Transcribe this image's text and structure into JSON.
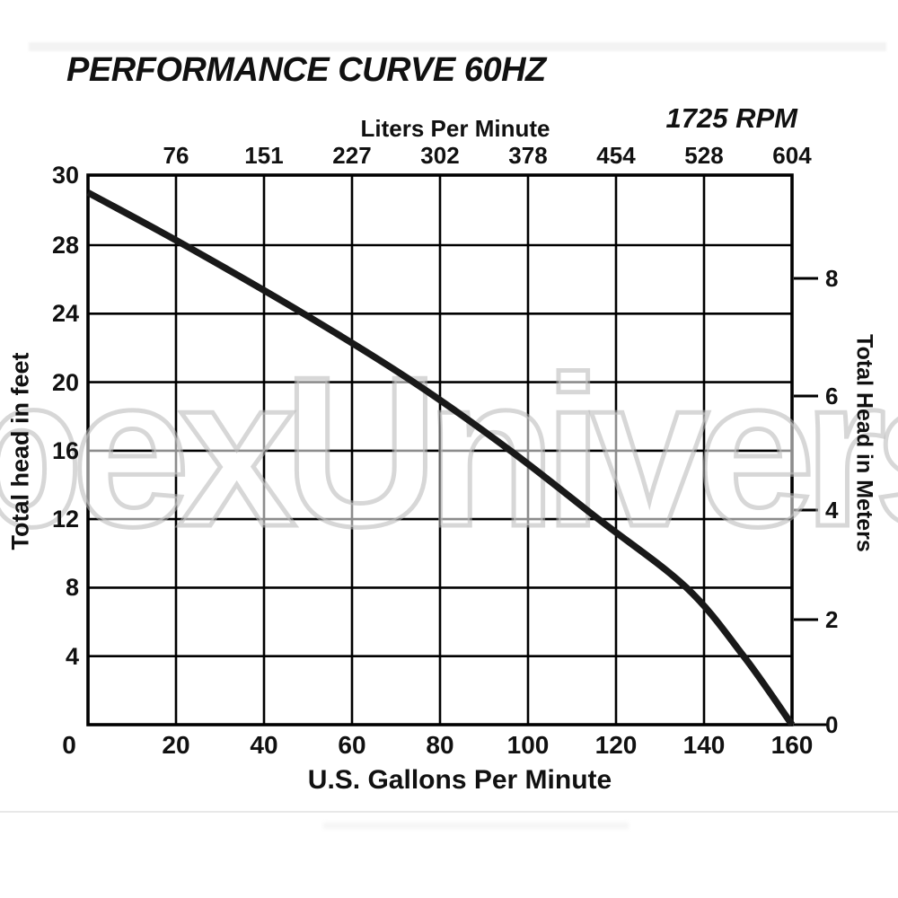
{
  "title": "PERFORMANCE CURVE 60HZ",
  "rpm_label": "1725 RPM",
  "watermark": "pexUniverse",
  "axes": {
    "top": {
      "label": "Liters Per Minute",
      "ticks": [
        76,
        151,
        227,
        302,
        378,
        454,
        528,
        604
      ]
    },
    "bottom": {
      "label": "U.S. Gallons Per Minute",
      "ticks": [
        0,
        20,
        40,
        60,
        80,
        100,
        120,
        140,
        160
      ]
    },
    "left": {
      "label": "Total head in feet",
      "ticks": [
        30,
        28,
        24,
        20,
        16,
        12,
        8,
        4
      ]
    },
    "right": {
      "label": "Total Head in Meters",
      "ticks": [
        8,
        6,
        4,
        2,
        0
      ]
    }
  },
  "colors": {
    "line": "#191919",
    "grid": "#000000",
    "text": "#111111",
    "watermark_stroke": "#b7b7b7"
  },
  "chart_data": {
    "type": "line",
    "title": "PERFORMANCE CURVE 60HZ",
    "series": [
      {
        "name": "1725 RPM",
        "x_gpm": [
          0,
          22,
          49,
          74,
          96,
          116,
          136,
          149,
          160
        ],
        "y_feet": [
          29.5,
          28,
          24,
          20,
          16,
          12,
          8,
          4,
          0
        ]
      }
    ],
    "xlabel": "U.S. Gallons Per Minute",
    "xlabel_top": "Liters Per Minute",
    "x_top_ticks_lpm": [
      76,
      151,
      227,
      302,
      378,
      454,
      528,
      604
    ],
    "ylabel": "Total head in feet",
    "ylabel_right": "Total Head in Meters",
    "y_right_ticks_m": [
      8,
      6,
      4,
      2,
      0
    ],
    "xlim": [
      0,
      160
    ],
    "ylim": [
      0,
      30
    ],
    "grid": "on",
    "legend": "none"
  }
}
